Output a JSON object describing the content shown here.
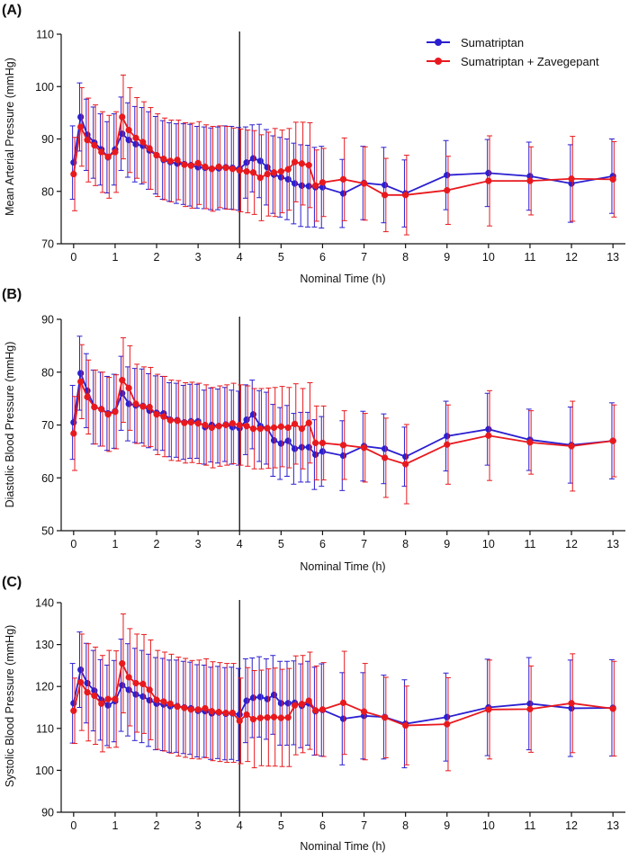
{
  "figure": {
    "legend": [
      {
        "label": "Sumatriptan",
        "color": "#2B1FD0"
      },
      {
        "label": "Sumatriptan + Zavegepant",
        "color": "#E8191E"
      }
    ]
  },
  "chart_data": [
    {
      "type": "line",
      "panel_label": "(A)",
      "ylabel": "Mean Arterial Pressure (mmHg)",
      "xlabel": "Nominal Time (h)",
      "xlim": [
        -0.3,
        13.3
      ],
      "ylim": [
        70,
        110
      ],
      "xticks": [
        0,
        1,
        2,
        3,
        4,
        5,
        6,
        7,
        8,
        9,
        10,
        11,
        12,
        13
      ],
      "yticks": [
        70,
        80,
        90,
        100,
        110
      ],
      "vline": 4,
      "x": [
        0,
        0.17,
        0.33,
        0.5,
        0.67,
        0.83,
        1,
        1.17,
        1.33,
        1.5,
        1.67,
        1.83,
        2,
        2.17,
        2.33,
        2.5,
        2.67,
        2.83,
        3,
        3.17,
        3.33,
        3.5,
        3.67,
        3.83,
        4,
        4.17,
        4.33,
        4.5,
        4.67,
        4.83,
        5,
        5.17,
        5.33,
        5.5,
        5.67,
        5.83,
        6,
        6.5,
        7,
        7.5,
        8,
        9,
        10,
        11,
        12,
        13
      ],
      "series": [
        {
          "name": "Sumatriptan",
          "color": "#2B1FD0",
          "values": [
            85.5,
            94.2,
            90.8,
            89.3,
            88.0,
            86.5,
            88.0,
            91.0,
            89.8,
            89.0,
            88.7,
            87.8,
            86.9,
            86.0,
            85.6,
            85.3,
            85.2,
            85.0,
            84.6,
            84.5,
            84.3,
            84.4,
            84.6,
            84.5,
            84.3,
            85.5,
            86.3,
            85.8,
            84.6,
            83.2,
            82.7,
            82.3,
            81.5,
            81.1,
            81.0,
            80.8,
            80.8,
            79.6,
            81.6,
            81.2,
            79.6,
            83.1,
            83.5,
            82.9,
            81.5,
            82.9
          ],
          "err": [
            7,
            6.5,
            6.8,
            6.8,
            6.8,
            6.8,
            6.8,
            7,
            7.1,
            7.2,
            7.3,
            7.4,
            7.4,
            7.5,
            7.5,
            7.6,
            7.7,
            7.8,
            7.8,
            7.8,
            7.8,
            7.9,
            7.9,
            7.9,
            7.9,
            6.8,
            6.4,
            7,
            7.2,
            7.4,
            7.6,
            7.7,
            7.7,
            7.8,
            7.8,
            7.6,
            7.8,
            6.5,
            7,
            7.2,
            6.4,
            6.6,
            6.4,
            6.5,
            7.4,
            7.1
          ]
        },
        {
          "name": "Sumatriptan + Zavegepant",
          "color": "#E8191E",
          "values": [
            83.3,
            92.3,
            89.8,
            88.8,
            87.5,
            86.6,
            87.5,
            94.2,
            91.7,
            90.2,
            89.4,
            88.2,
            86.9,
            86.2,
            85.8,
            86.0,
            85.1,
            84.9,
            85.4,
            84.7,
            84.3,
            84.7,
            84.5,
            84.3,
            84.0,
            83.8,
            83.6,
            82.6,
            83.3,
            83.6,
            83.8,
            84.2,
            85.6,
            85.3,
            85.0,
            81.1,
            81.7,
            82.3,
            81.5,
            79.3,
            79.3,
            80.2,
            82.0,
            82.0,
            82.4,
            82.3
          ],
          "err": [
            7,
            7.5,
            8,
            7.7,
            7.7,
            7.9,
            7.7,
            8,
            8.1,
            7.7,
            7.7,
            7.8,
            7.9,
            7.8,
            7.8,
            7.6,
            8,
            8.1,
            7.9,
            8,
            8.1,
            7.8,
            7.9,
            7.8,
            7.9,
            7.9,
            8,
            8.2,
            8,
            8.4,
            7.9,
            7.8,
            7.6,
            7.9,
            8.1,
            6.8,
            6.5,
            7.9,
            7,
            7,
            7.6,
            6.5,
            8.6,
            6.5,
            8.1,
            7.2
          ]
        }
      ]
    },
    {
      "type": "line",
      "panel_label": "(B)",
      "ylabel": "Diastolic Blood Pressure (mmHg)",
      "xlabel": "Nominal Time (h)",
      "xlim": [
        -0.3,
        13.3
      ],
      "ylim": [
        50,
        90
      ],
      "xticks": [
        0,
        1,
        2,
        3,
        4,
        5,
        6,
        7,
        8,
        9,
        10,
        11,
        12,
        13
      ],
      "yticks": [
        50,
        60,
        70,
        80,
        90
      ],
      "vline": 4,
      "x": [
        0,
        0.17,
        0.33,
        0.5,
        0.67,
        0.83,
        1,
        1.17,
        1.33,
        1.5,
        1.67,
        1.83,
        2,
        2.17,
        2.33,
        2.5,
        2.67,
        2.83,
        3,
        3.17,
        3.33,
        3.5,
        3.67,
        3.83,
        4,
        4.17,
        4.33,
        4.5,
        4.67,
        4.83,
        5,
        5.17,
        5.33,
        5.5,
        5.67,
        5.83,
        6,
        6.5,
        7,
        7.5,
        8,
        9,
        10,
        11,
        12,
        13
      ],
      "series": [
        {
          "name": "Sumatriptan",
          "color": "#2B1FD0",
          "values": [
            70.5,
            79.8,
            76.5,
            73.4,
            73.0,
            72.2,
            72.6,
            76.0,
            74.0,
            73.7,
            73.6,
            72.7,
            72.3,
            72.2,
            71.0,
            70.9,
            70.5,
            70.7,
            70.7,
            69.6,
            70.0,
            69.8,
            70.1,
            69.6,
            69.4,
            71.0,
            72.0,
            69.8,
            69.4,
            67.1,
            66.5,
            67.0,
            65.5,
            65.8,
            65.8,
            64.4,
            65.0,
            64.2,
            66.0,
            65.5,
            64.0,
            67.9,
            69.2,
            67.2,
            66.2,
            67.0
          ],
          "err": [
            7,
            7,
            7,
            7,
            7,
            7,
            7,
            7,
            7,
            7,
            7,
            7,
            7,
            7,
            7,
            7,
            7,
            7,
            7,
            7,
            7,
            7,
            7,
            7,
            7,
            6.6,
            6.5,
            6.7,
            6.8,
            6.8,
            6.8,
            6.7,
            6.7,
            6.6,
            6.6,
            6.6,
            6.6,
            6.6,
            6.6,
            6.6,
            5.6,
            6.6,
            6.8,
            5.8,
            7.2,
            7.2
          ]
        },
        {
          "name": "Sumatriptan + Zavegepant",
          "color": "#E8191E",
          "values": [
            68.4,
            78.2,
            75.3,
            73.4,
            73.0,
            72.0,
            72.5,
            78.5,
            77.0,
            74.0,
            73.5,
            73.4,
            72.0,
            71.6,
            70.9,
            70.8,
            70.4,
            70.5,
            70.3,
            70.0,
            69.5,
            69.8,
            70.0,
            70.3,
            70.0,
            69.8,
            69.3,
            69.3,
            69.4,
            69.5,
            69.7,
            69.5,
            70.2,
            69.3,
            70.4,
            66.6,
            66.6,
            66.2,
            65.7,
            63.8,
            62.6,
            66.3,
            68.0,
            66.7,
            66.0,
            67.0
          ],
          "err": [
            7,
            7,
            7,
            7,
            7,
            7,
            7,
            8,
            8,
            7.5,
            7.5,
            7.5,
            7.6,
            7.6,
            7.6,
            7.6,
            7.6,
            7.6,
            7.6,
            7.6,
            7.6,
            7.6,
            7.6,
            7.6,
            7.6,
            7.6,
            7.6,
            7.6,
            7.6,
            7.6,
            7.6,
            7.6,
            7.6,
            7.6,
            7.6,
            7,
            7,
            6.5,
            6.5,
            7.5,
            7.5,
            7.5,
            8.5,
            6,
            8.5,
            6.8
          ]
        }
      ]
    },
    {
      "type": "line",
      "panel_label": "(C)",
      "ylabel": "Systolic Blood Pressure (mmHg)",
      "xlabel": "Nominal Time (h)",
      "xlim": [
        -0.3,
        13.3
      ],
      "ylim": [
        90,
        140
      ],
      "xticks": [
        0,
        1,
        2,
        3,
        4,
        5,
        6,
        7,
        8,
        9,
        10,
        11,
        12,
        13
      ],
      "yticks": [
        90,
        100,
        110,
        120,
        130,
        140
      ],
      "vline": 4,
      "x": [
        0,
        0.17,
        0.33,
        0.5,
        0.67,
        0.83,
        1,
        1.17,
        1.33,
        1.5,
        1.67,
        1.83,
        2,
        2.17,
        2.33,
        2.5,
        2.67,
        2.83,
        3,
        3.17,
        3.33,
        3.5,
        3.67,
        3.83,
        4,
        4.17,
        4.33,
        4.5,
        4.67,
        4.83,
        5,
        5.17,
        5.33,
        5.5,
        5.67,
        5.83,
        6,
        6.5,
        7,
        7.5,
        8,
        9,
        10,
        11,
        12,
        13
      ],
      "series": [
        {
          "name": "Sumatriptan",
          "color": "#2B1FD0",
          "values": [
            116.0,
            124.0,
            120.8,
            119.0,
            116.8,
            115.5,
            116.5,
            120.3,
            119.2,
            118.1,
            117.6,
            116.7,
            115.9,
            115.7,
            115.3,
            115.3,
            115.0,
            114.8,
            114.2,
            114.1,
            113.6,
            113.8,
            113.5,
            113.6,
            113.3,
            116.6,
            117.3,
            117.5,
            117.0,
            118.0,
            116.0,
            116.0,
            116.1,
            115.4,
            116.0,
            114.1,
            114.4,
            112.3,
            113.0,
            112.7,
            111.1,
            112.7,
            115.0,
            115.9,
            114.8,
            114.9
          ],
          "err": [
            9.5,
            9,
            9.5,
            9.6,
            9.6,
            9.6,
            9.7,
            11,
            11,
            11,
            11,
            11,
            11,
            11,
            11,
            11,
            11,
            11,
            11,
            11,
            11,
            11,
            11,
            11,
            11,
            10,
            9.5,
            9.6,
            9.6,
            9.4,
            10,
            10,
            10,
            10,
            10,
            10.5,
            11,
            11,
            10.3,
            10,
            10.5,
            10.5,
            11.5,
            11,
            11.5,
            11.5
          ]
        },
        {
          "name": "Sumatriptan + Zavegepant",
          "color": "#E8191E",
          "values": [
            114.2,
            121.0,
            118.6,
            117.8,
            115.9,
            117.0,
            117.0,
            125.5,
            122.2,
            120.8,
            120.6,
            119.2,
            116.8,
            116.4,
            115.9,
            115.2,
            114.9,
            114.5,
            114.5,
            114.8,
            114.1,
            113.9,
            113.7,
            113.7,
            111.8,
            113.3,
            112.2,
            112.5,
            112.6,
            112.7,
            112.5,
            112.6,
            115.5,
            115.8,
            116.6,
            114.3,
            114.5,
            116.1,
            114.0,
            112.6,
            110.7,
            111.0,
            114.5,
            114.6,
            116.0,
            114.7
          ],
          "err": [
            7.8,
            11.5,
            11.6,
            11.6,
            11.5,
            11.6,
            11.5,
            11.8,
            11.6,
            11.7,
            11.8,
            11.9,
            11.8,
            11.8,
            11.8,
            11.8,
            11.8,
            11.7,
            11.8,
            11.8,
            11.8,
            11.8,
            11.8,
            11.8,
            10.2,
            11.2,
            11.6,
            11.4,
            11.6,
            11.7,
            11.6,
            11.7,
            11.8,
            11.6,
            11.6,
            10.6,
            11.2,
            12.3,
            11.5,
            9.6,
            9.4,
            11.1,
            11.8,
            10.3,
            11.8,
            11.3
          ]
        }
      ]
    }
  ]
}
